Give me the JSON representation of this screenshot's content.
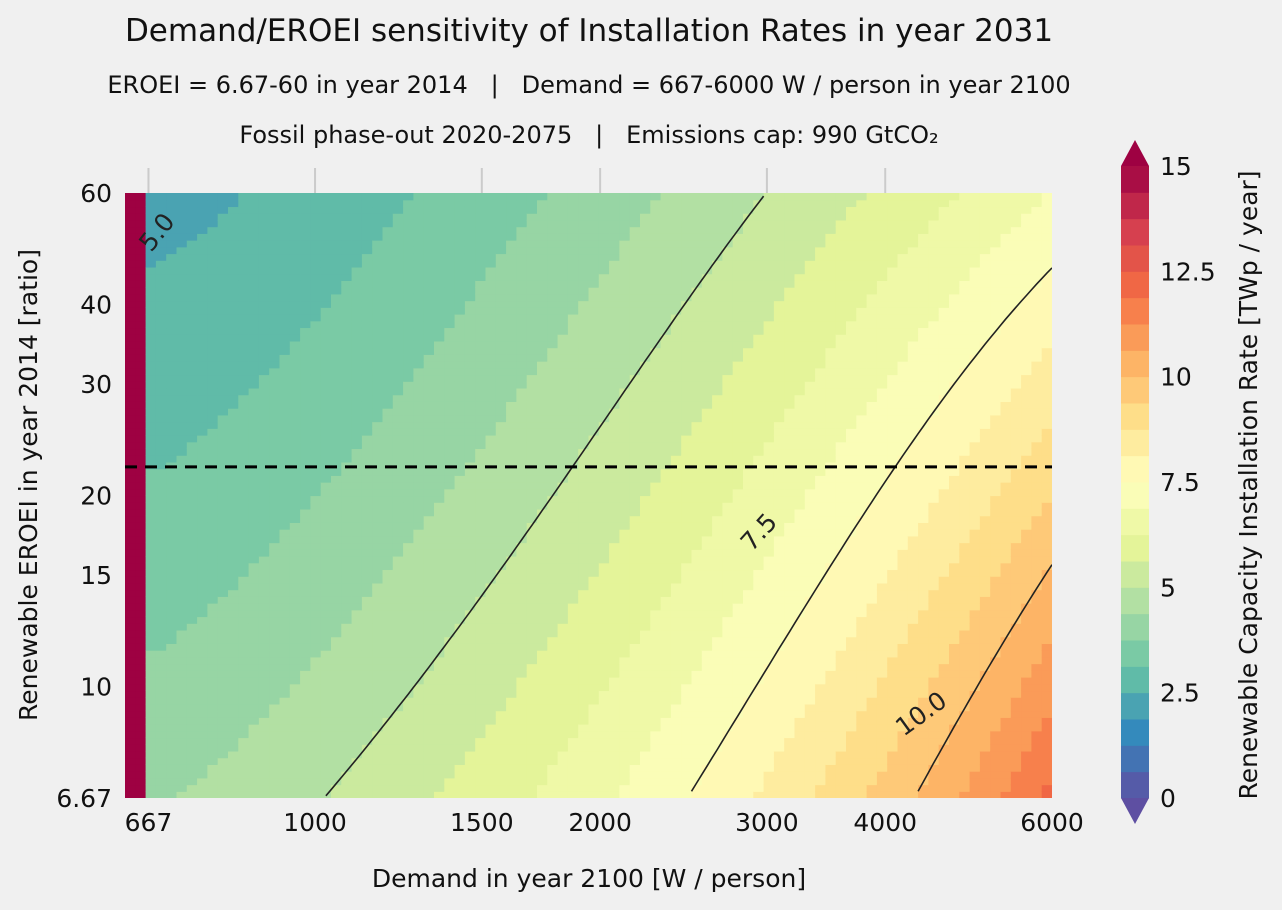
{
  "chart_data": {
    "type": "heatmap",
    "title": "Demand/EROEI sensitivity of Installation Rates in year 2031",
    "subtitle_1": "EROEI = 6.67-60 in year 2014   |   Demand = 667-6000 W / person in year 2100",
    "subtitle_2": "Fossil phase-out 2020-2075   |   Emissions cap: 990 GtCO₂",
    "xlabel": "Demand in year 2100 [W / person]",
    "ylabel": "Renewable EROEI in year 2014 [ratio]",
    "x_scale": "log",
    "y_scale": "log",
    "xlim": [
      630,
      6000
    ],
    "ylim": [
      6.67,
      60
    ],
    "x_ticks": [
      667,
      1000,
      1500,
      2000,
      3000,
      4000,
      6000
    ],
    "y_ticks": [
      6.67,
      10,
      15,
      20,
      30,
      40,
      60
    ],
    "x_tick_labels": [
      "667",
      "1000",
      "1500",
      "2000",
      "3000",
      "4000",
      "6000"
    ],
    "y_tick_labels": [
      "6.67",
      "10",
      "15",
      "20",
      "30",
      "40",
      "60"
    ],
    "reference_line": {
      "y": 22.2,
      "style": "dashed"
    },
    "contour_lines": [
      {
        "level": 5.0,
        "label": "5.0"
      },
      {
        "level": 7.5,
        "label": "7.5"
      },
      {
        "level": 10.0,
        "label": "10.0"
      }
    ],
    "colorbar": {
      "label": "Renewable Capacity Installation Rate [TWp / year]",
      "min": 0,
      "max": 15,
      "step": 0.625,
      "tick_values": [
        0,
        2.5,
        5,
        7.5,
        10,
        12.5,
        15
      ],
      "tick_labels": [
        "0",
        "2.5",
        "5",
        "7.5",
        "10",
        "12.5",
        "15"
      ],
      "extend": "both",
      "colormap": "Spectral_r"
    }
  }
}
